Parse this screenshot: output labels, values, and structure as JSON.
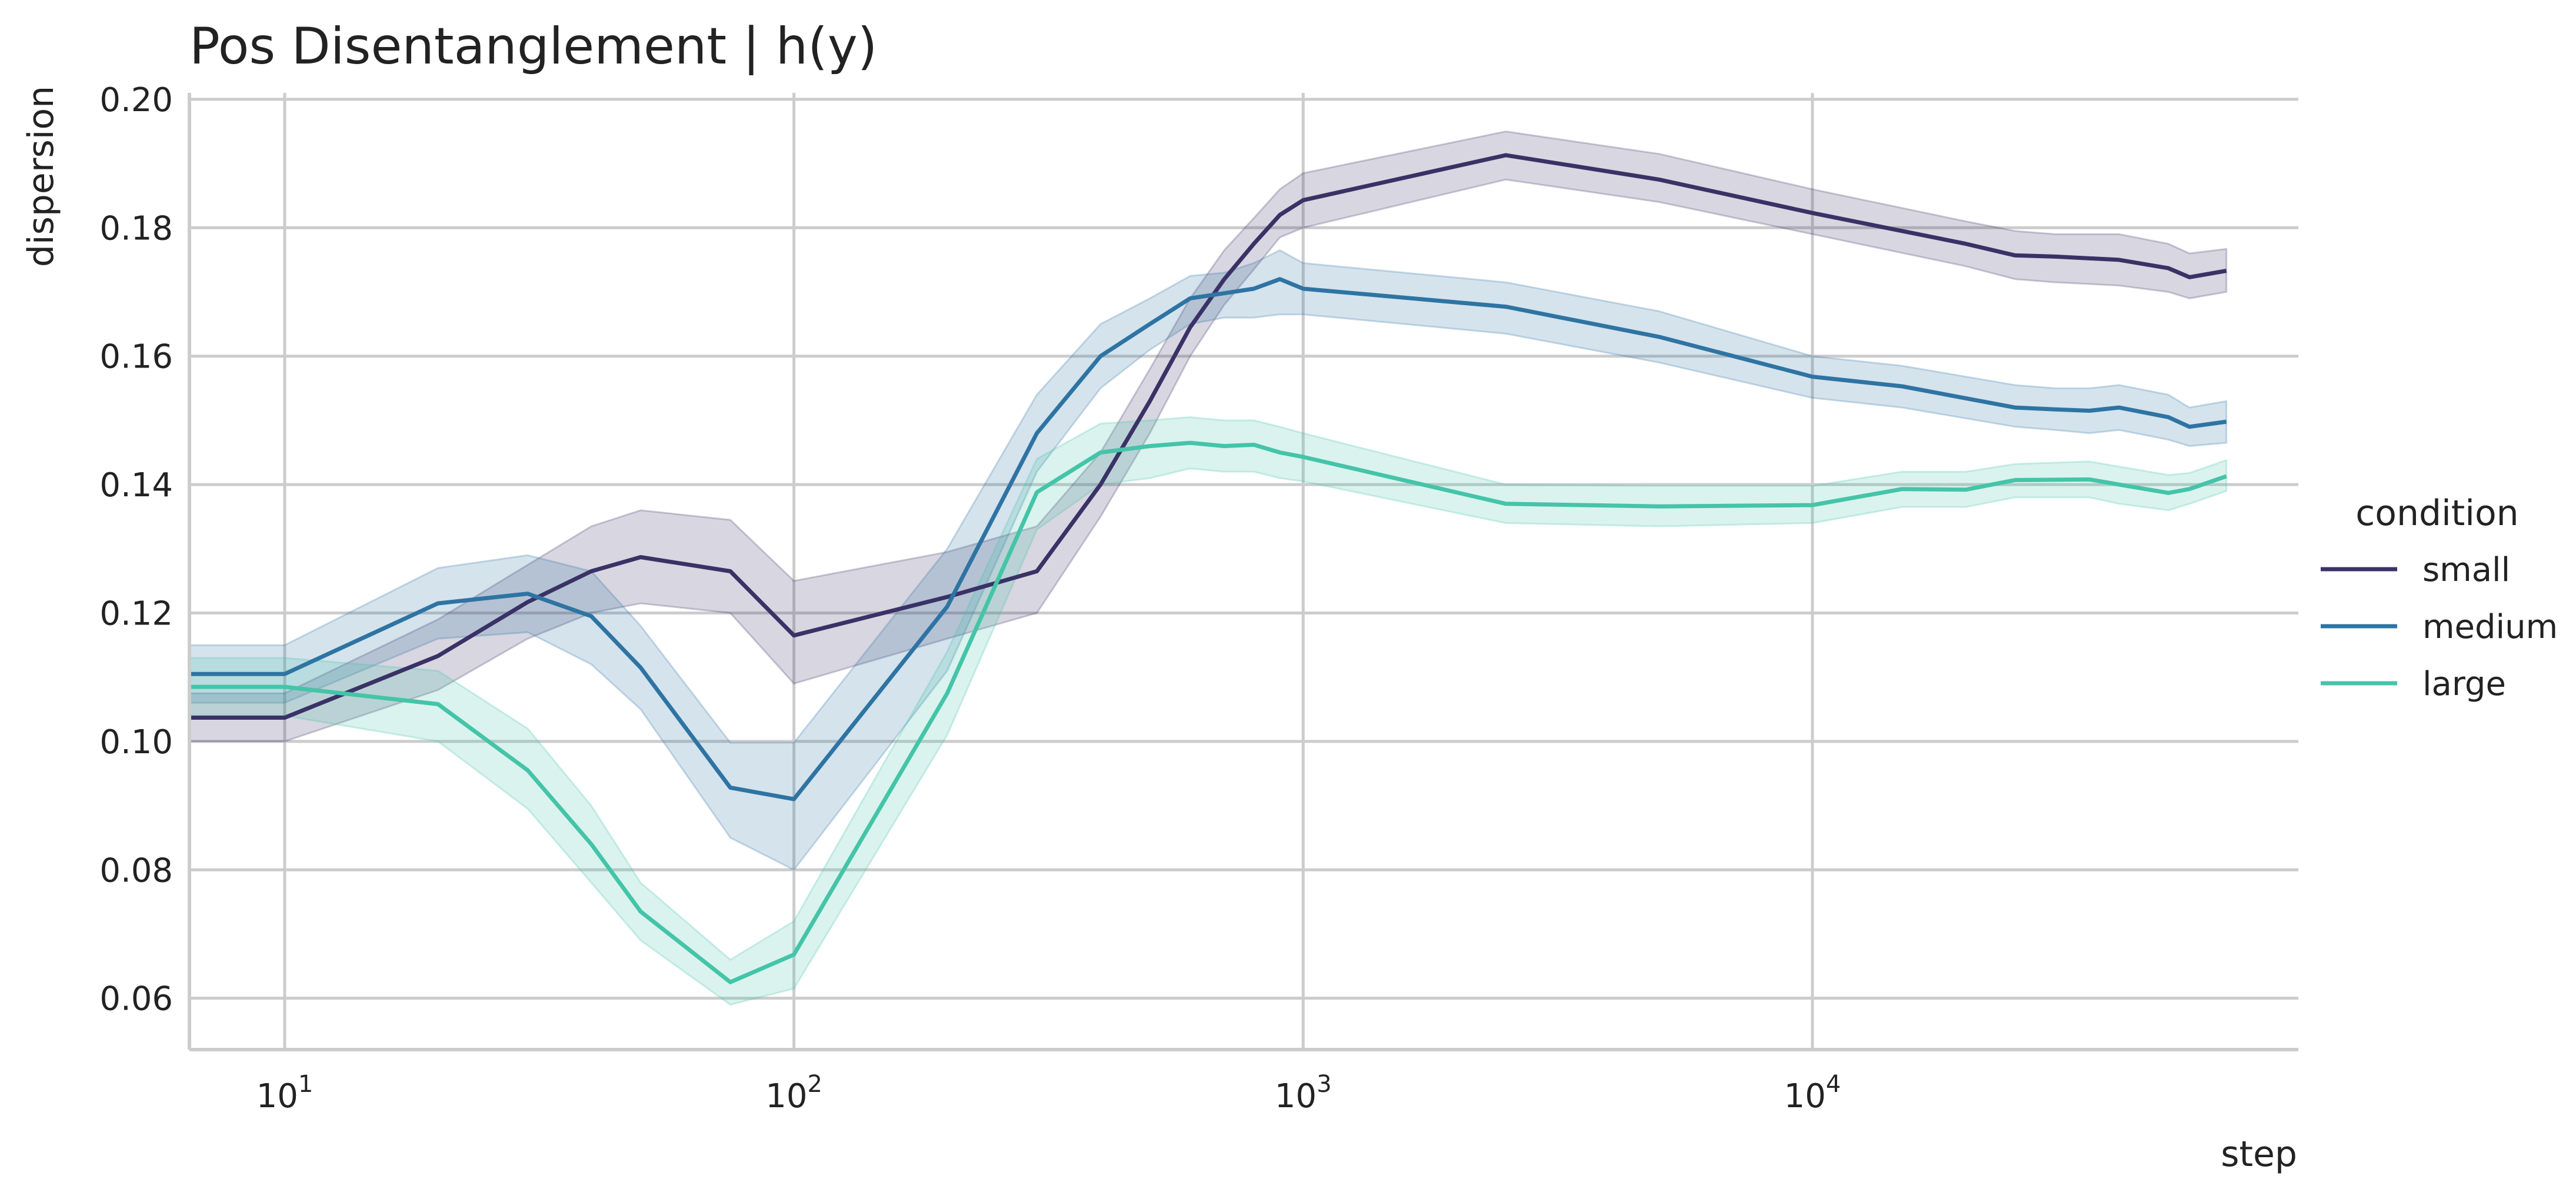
{
  "chart_data": {
    "type": "line",
    "title": "Pos Disentanglement | h(y)",
    "xlabel": "step",
    "ylabel": "dispersion",
    "xscale": "log",
    "xlim": [
      6.5,
      90000
    ],
    "ylim": [
      0.052,
      0.201
    ],
    "x_ticks": [
      10,
      100,
      1000,
      10000
    ],
    "x_tick_labels": [
      {
        "base": "10",
        "exp": "1"
      },
      {
        "base": "10",
        "exp": "2"
      },
      {
        "base": "10",
        "exp": "3"
      },
      {
        "base": "10",
        "exp": "4"
      }
    ],
    "y_ticks": [
      0.06,
      0.08,
      0.1,
      0.12,
      0.14,
      0.16,
      0.18,
      0.2
    ],
    "y_tick_labels": [
      "0.06",
      "0.08",
      "0.10",
      "0.12",
      "0.14",
      "0.16",
      "0.18",
      "0.20"
    ],
    "grid": true,
    "legend": {
      "title": "condition",
      "placement": "right"
    },
    "series": [
      {
        "name": "small",
        "color": "#3a3266",
        "points": [
          [
            6.5,
            0.1037
          ],
          [
            10,
            0.1037
          ],
          [
            20,
            0.1133
          ],
          [
            30,
            0.1217
          ],
          [
            40,
            0.1265
          ],
          [
            50,
            0.1287
          ],
          [
            75,
            0.1265
          ],
          [
            100,
            0.1165
          ],
          [
            200,
            0.1225
          ],
          [
            300,
            0.1265
          ],
          [
            400,
            0.14
          ],
          [
            500,
            0.153
          ],
          [
            600,
            0.1645
          ],
          [
            700,
            0.172
          ],
          [
            800,
            0.1775
          ],
          [
            900,
            0.182
          ],
          [
            1000,
            0.1843
          ],
          [
            2500,
            0.1913
          ],
          [
            5000,
            0.1875
          ],
          [
            10000,
            0.1823
          ],
          [
            20000,
            0.1775
          ],
          [
            25000,
            0.1757
          ],
          [
            30000,
            0.1755
          ],
          [
            40000,
            0.175
          ],
          [
            50000,
            0.1737
          ],
          [
            55000,
            0.1723
          ],
          [
            65000,
            0.1733
          ]
        ],
        "lower": [
          [
            6.5,
            0.1
          ],
          [
            10,
            0.1
          ],
          [
            20,
            0.108
          ],
          [
            30,
            0.116
          ],
          [
            40,
            0.12
          ],
          [
            50,
            0.1215
          ],
          [
            75,
            0.12
          ],
          [
            100,
            0.109
          ],
          [
            200,
            0.116
          ],
          [
            300,
            0.12
          ],
          [
            400,
            0.135
          ],
          [
            500,
            0.148
          ],
          [
            600,
            0.16
          ],
          [
            700,
            0.168
          ],
          [
            800,
            0.1735
          ],
          [
            900,
            0.1785
          ],
          [
            1000,
            0.18
          ],
          [
            2500,
            0.1875
          ],
          [
            5000,
            0.184
          ],
          [
            10000,
            0.179
          ],
          [
            20000,
            0.174
          ],
          [
            25000,
            0.172
          ],
          [
            30000,
            0.1715
          ],
          [
            40000,
            0.171
          ],
          [
            50000,
            0.17
          ],
          [
            55000,
            0.169
          ],
          [
            65000,
            0.17
          ]
        ],
        "upper": [
          [
            6.5,
            0.1075
          ],
          [
            10,
            0.1075
          ],
          [
            20,
            0.119
          ],
          [
            30,
            0.1275
          ],
          [
            40,
            0.1335
          ],
          [
            50,
            0.136
          ],
          [
            75,
            0.1345
          ],
          [
            100,
            0.125
          ],
          [
            200,
            0.1295
          ],
          [
            300,
            0.1335
          ],
          [
            400,
            0.145
          ],
          [
            500,
            0.158
          ],
          [
            600,
            0.169
          ],
          [
            700,
            0.1765
          ],
          [
            800,
            0.1815
          ],
          [
            900,
            0.186
          ],
          [
            1000,
            0.1885
          ],
          [
            2500,
            0.195
          ],
          [
            5000,
            0.1915
          ],
          [
            10000,
            0.186
          ],
          [
            20000,
            0.181
          ],
          [
            25000,
            0.1795
          ],
          [
            30000,
            0.179
          ],
          [
            40000,
            0.179
          ],
          [
            50000,
            0.1775
          ],
          [
            55000,
            0.176
          ],
          [
            65000,
            0.1767
          ]
        ]
      },
      {
        "name": "medium",
        "color": "#2e74a3",
        "points": [
          [
            6.5,
            0.1105
          ],
          [
            10,
            0.1105
          ],
          [
            20,
            0.1215
          ],
          [
            30,
            0.123
          ],
          [
            40,
            0.1195
          ],
          [
            50,
            0.1115
          ],
          [
            75,
            0.0928
          ],
          [
            100,
            0.091
          ],
          [
            200,
            0.121
          ],
          [
            300,
            0.148
          ],
          [
            400,
            0.16
          ],
          [
            500,
            0.165
          ],
          [
            600,
            0.169
          ],
          [
            700,
            0.1698
          ],
          [
            800,
            0.1705
          ],
          [
            900,
            0.172
          ],
          [
            1000,
            0.1705
          ],
          [
            2500,
            0.1677
          ],
          [
            5000,
            0.163
          ],
          [
            10000,
            0.1568
          ],
          [
            15000,
            0.1553
          ],
          [
            25000,
            0.152
          ],
          [
            30000,
            0.1517
          ],
          [
            35000,
            0.1515
          ],
          [
            40000,
            0.152
          ],
          [
            50000,
            0.1505
          ],
          [
            55000,
            0.149
          ],
          [
            65000,
            0.1498
          ]
        ],
        "lower": [
          [
            6.5,
            0.106
          ],
          [
            10,
            0.106
          ],
          [
            20,
            0.116
          ],
          [
            30,
            0.117
          ],
          [
            40,
            0.112
          ],
          [
            50,
            0.105
          ],
          [
            75,
            0.085
          ],
          [
            100,
            0.08
          ],
          [
            200,
            0.111
          ],
          [
            300,
            0.142
          ],
          [
            400,
            0.155
          ],
          [
            500,
            0.161
          ],
          [
            600,
            0.165
          ],
          [
            700,
            0.166
          ],
          [
            800,
            0.166
          ],
          [
            900,
            0.1665
          ],
          [
            1000,
            0.1665
          ],
          [
            2500,
            0.1635
          ],
          [
            5000,
            0.159
          ],
          [
            10000,
            0.1535
          ],
          [
            15000,
            0.152
          ],
          [
            25000,
            0.149
          ],
          [
            30000,
            0.1485
          ],
          [
            35000,
            0.148
          ],
          [
            40000,
            0.1485
          ],
          [
            50000,
            0.147
          ],
          [
            55000,
            0.146
          ],
          [
            65000,
            0.1465
          ]
        ],
        "upper": [
          [
            6.5,
            0.115
          ],
          [
            10,
            0.115
          ],
          [
            20,
            0.127
          ],
          [
            30,
            0.129
          ],
          [
            40,
            0.1265
          ],
          [
            50,
            0.118
          ],
          [
            75,
            0.0998
          ],
          [
            100,
            0.0998
          ],
          [
            200,
            0.13
          ],
          [
            300,
            0.154
          ],
          [
            400,
            0.165
          ],
          [
            500,
            0.169
          ],
          [
            600,
            0.1725
          ],
          [
            700,
            0.173
          ],
          [
            800,
            0.1745
          ],
          [
            900,
            0.1765
          ],
          [
            1000,
            0.1745
          ],
          [
            2500,
            0.1715
          ],
          [
            5000,
            0.167
          ],
          [
            10000,
            0.16
          ],
          [
            15000,
            0.1585
          ],
          [
            25000,
            0.1555
          ],
          [
            30000,
            0.155
          ],
          [
            35000,
            0.155
          ],
          [
            40000,
            0.1555
          ],
          [
            50000,
            0.154
          ],
          [
            55000,
            0.152
          ],
          [
            65000,
            0.153
          ]
        ]
      },
      {
        "name": "large",
        "color": "#44c4a8",
        "points": [
          [
            6.5,
            0.1085
          ],
          [
            10,
            0.1085
          ],
          [
            20,
            0.1058
          ],
          [
            30,
            0.0955
          ],
          [
            40,
            0.084
          ],
          [
            50,
            0.0735
          ],
          [
            75,
            0.0625
          ],
          [
            100,
            0.0668
          ],
          [
            200,
            0.1075
          ],
          [
            300,
            0.1388
          ],
          [
            400,
            0.145
          ],
          [
            500,
            0.146
          ],
          [
            600,
            0.1465
          ],
          [
            700,
            0.146
          ],
          [
            800,
            0.1462
          ],
          [
            900,
            0.145
          ],
          [
            1000,
            0.1443
          ],
          [
            2500,
            0.137
          ],
          [
            5000,
            0.1366
          ],
          [
            10000,
            0.1368
          ],
          [
            15000,
            0.1393
          ],
          [
            20000,
            0.1392
          ],
          [
            25000,
            0.1407
          ],
          [
            35000,
            0.1408
          ],
          [
            40000,
            0.14
          ],
          [
            50000,
            0.1387
          ],
          [
            55000,
            0.1393
          ],
          [
            65000,
            0.1413
          ]
        ],
        "lower": [
          [
            6.5,
            0.104
          ],
          [
            10,
            0.104
          ],
          [
            20,
            0.1
          ],
          [
            30,
            0.0895
          ],
          [
            40,
            0.078
          ],
          [
            50,
            0.069
          ],
          [
            75,
            0.059
          ],
          [
            100,
            0.0615
          ],
          [
            200,
            0.101
          ],
          [
            300,
            0.133
          ],
          [
            400,
            0.14
          ],
          [
            500,
            0.141
          ],
          [
            600,
            0.1425
          ],
          [
            700,
            0.142
          ],
          [
            800,
            0.142
          ],
          [
            900,
            0.141
          ],
          [
            1000,
            0.1405
          ],
          [
            2500,
            0.134
          ],
          [
            5000,
            0.1335
          ],
          [
            10000,
            0.134
          ],
          [
            15000,
            0.1365
          ],
          [
            20000,
            0.1365
          ],
          [
            25000,
            0.138
          ],
          [
            35000,
            0.138
          ],
          [
            40000,
            0.137
          ],
          [
            50000,
            0.136
          ],
          [
            55000,
            0.137
          ],
          [
            65000,
            0.139
          ]
        ],
        "upper": [
          [
            6.5,
            0.113
          ],
          [
            10,
            0.113
          ],
          [
            20,
            0.111
          ],
          [
            30,
            0.102
          ],
          [
            40,
            0.09
          ],
          [
            50,
            0.078
          ],
          [
            75,
            0.066
          ],
          [
            100,
            0.072
          ],
          [
            200,
            0.114
          ],
          [
            300,
            0.144
          ],
          [
            400,
            0.1495
          ],
          [
            500,
            0.15
          ],
          [
            600,
            0.1505
          ],
          [
            700,
            0.15
          ],
          [
            800,
            0.15
          ],
          [
            900,
            0.149
          ],
          [
            1000,
            0.148
          ],
          [
            2500,
            0.14
          ],
          [
            5000,
            0.1398
          ],
          [
            10000,
            0.1398
          ],
          [
            15000,
            0.142
          ],
          [
            20000,
            0.142
          ],
          [
            25000,
            0.1432
          ],
          [
            35000,
            0.1436
          ],
          [
            40000,
            0.1428
          ],
          [
            50000,
            0.1415
          ],
          [
            55000,
            0.1418
          ],
          [
            65000,
            0.1438
          ]
        ]
      }
    ]
  }
}
